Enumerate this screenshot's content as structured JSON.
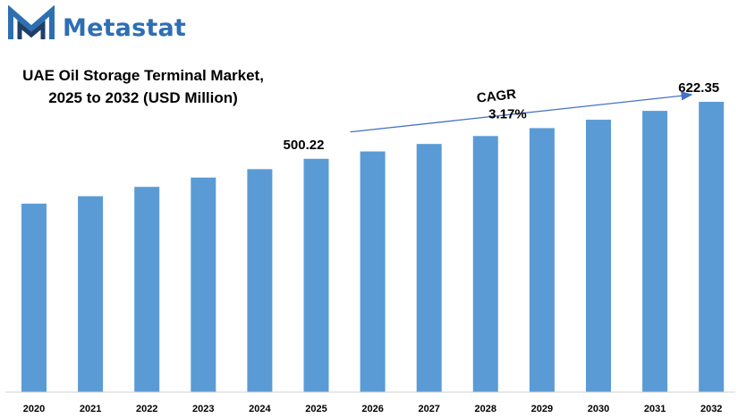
{
  "brand": {
    "name": "Metastat",
    "logo_icon": "metastat-m-logo-icon",
    "color": "#2e6fb2"
  },
  "chart_data": {
    "type": "bar",
    "title_lines": [
      "UAE Oil Storage Terminal Market,",
      "2025 to 2032 (USD Million)"
    ],
    "categories": [
      "2020",
      "2021",
      "2022",
      "2023",
      "2024",
      "2025",
      "2026",
      "2027",
      "2028",
      "2029",
      "2030",
      "2031",
      "2032"
    ],
    "values": [
      404,
      420,
      440,
      460,
      478,
      500.22,
      516,
      532,
      549,
      566,
      584,
      603,
      622.35
    ],
    "data_labels": [
      {
        "category": "2025",
        "text": "500.22"
      },
      {
        "category": "2032",
        "text": "622.35"
      }
    ],
    "annotation": {
      "label": "CAGR",
      "value": "3.17%",
      "from": "2025",
      "to": "2032"
    },
    "bar_color": "#5b9bd5",
    "xlabel": "",
    "ylabel": "",
    "ylim": [
      0,
      622.35
    ],
    "grid": false,
    "legend": "none"
  }
}
